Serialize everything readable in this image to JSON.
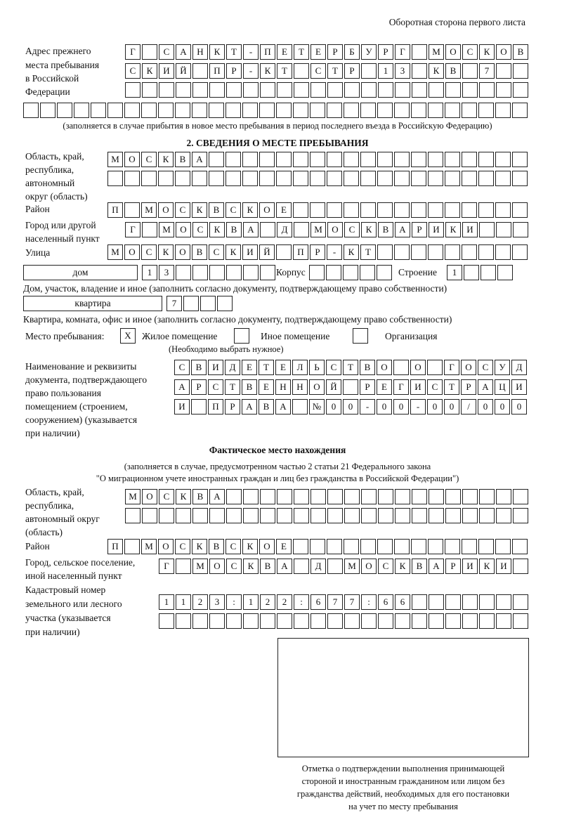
{
  "header": "Оборотная сторона первого листа",
  "prev_address": {
    "label": [
      "Адрес прежнего",
      "места пребывания",
      "в Российской",
      "Федерации"
    ],
    "rows": [
      "Г САНКТ-ПЕТЕРБУРГ МОСКОВ",
      "СКИЙ ПР-КТ СТР 13 КВ 7",
      "",
      ""
    ],
    "note": "(заполняется в случае прибытия в новое место пребывания в период последнего въезда в Российскую Федерацию)"
  },
  "section2": {
    "title": "2. СВЕДЕНИЯ О МЕСТЕ ПРЕБЫВАНИЯ",
    "region_label": [
      "Область, край,",
      "республика,",
      "автономный",
      "округ (область)"
    ],
    "region_rows": [
      "МОСКВА",
      ""
    ],
    "district_label": "Район",
    "district": "П МОСКВСКОЕ",
    "city_label": [
      "Город или другой",
      "населенный пункт"
    ],
    "city": "Г МОСКВА Д МОСКВАРИКИ",
    "street_label": "Улица",
    "street": "МОСКОВСКИЙ ПР-КТ",
    "house_type": "дом",
    "house": "13",
    "building_label": "Корпус",
    "building": "",
    "structure_label": "Строение",
    "structure": "1",
    "house_note": "Дом, участок, владение и иное (заполнить согласно документу, подтверждающему право собственности)",
    "apt_type": "квартира",
    "apt": "7",
    "apt_note": "Квартира, комната, офис и иное (заполнить согласно документу, подтверждающему право собственности)",
    "place_label": "Место пребывания:",
    "place_options": [
      {
        "label": "Жилое помещение",
        "mark": "X"
      },
      {
        "label": "Иное помещение",
        "mark": ""
      },
      {
        "label": "Организация",
        "mark": ""
      }
    ],
    "place_note": "(Необходимо выбрать нужное)",
    "doc_label": [
      "Наименование и реквизиты",
      "документа, подтверждающего",
      "право пользования",
      "помещением (строением,",
      "сооружением) (указывается",
      "при наличии)"
    ],
    "doc_rows": [
      "СВИДЕТЕЛЬСТВО О ГОСУД",
      "АРСТВЕННОЙ РЕГИСТРАЦИ",
      "И ПРАВА №00-00-00/000"
    ]
  },
  "actual": {
    "title": "Фактическое место нахождения",
    "note1": "(заполняется в случае, предусмотренном частью 2 статьи 21 Федерального закона",
    "note2": "\"О миграционном учете иностранных граждан и лиц без гражданства в Российской Федерации\")",
    "region_label": [
      "Область, край,",
      "республика,",
      "автономный округ",
      "(область)"
    ],
    "region_rows": [
      "МОСКВА",
      ""
    ],
    "district_label": "Район",
    "district": "П МОСКВСКОЕ",
    "city_label": [
      "Город, сельское поселение,",
      "иной населенный пункт"
    ],
    "city": "Г МОСКВА Д МОСКВАРИКИ",
    "cadastral_label": [
      "Кадастровый номер",
      "земельного или лесного",
      "участка (указывается",
      "при наличии)"
    ],
    "cadastral_rows": [
      "1123:122:677:66",
      ""
    ]
  },
  "stamp_caption": [
    "Отметка о подтверждении выполнения принимающей",
    "стороной и иностранным гражданином или лицом без",
    "гражданства действий, необходимых для его постановки",
    "на учет по месту пребывания"
  ]
}
